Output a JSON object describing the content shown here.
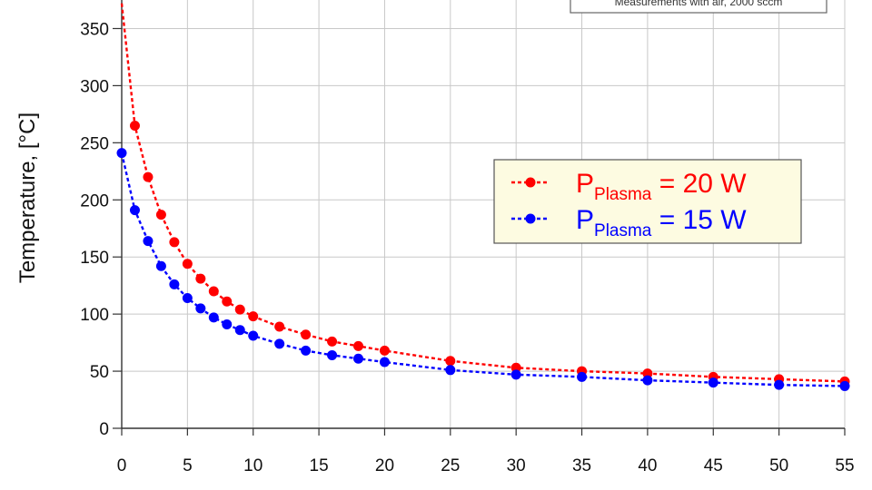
{
  "chart_data": {
    "type": "line",
    "title": "",
    "xlabel": "",
    "ylabel": "Temperature, [°C]",
    "xlim": [
      0,
      55
    ],
    "ylim": [
      0,
      375
    ],
    "xticks": [
      0,
      5,
      10,
      15,
      20,
      25,
      30,
      35,
      40,
      45,
      50,
      55
    ],
    "yticks": [
      0,
      50,
      100,
      150,
      200,
      250,
      300,
      350
    ],
    "grid": true,
    "legend_position": "center-right",
    "annotation": "Measurements with air, 2000 sccm",
    "series": [
      {
        "name": "P_Plasma = 20 W",
        "legend_main": "P",
        "legend_sub": "Plasma",
        "legend_rest": " = 20 W",
        "color": "#ff0000",
        "x": [
          0,
          1,
          2,
          3,
          4,
          5,
          6,
          7,
          8,
          9,
          10,
          12,
          14,
          16,
          18,
          20,
          25,
          30,
          35,
          40,
          45,
          50,
          55
        ],
        "y": [
          372,
          265,
          220,
          187,
          163,
          144,
          131,
          120,
          111,
          104,
          98,
          89,
          82,
          76,
          72,
          68,
          59,
          53,
          50,
          48,
          45,
          43,
          41
        ]
      },
      {
        "name": "P_Plasma = 15 W",
        "legend_main": "P",
        "legend_sub": "Plasma",
        "legend_rest": " = 15 W",
        "color": "#0000ff",
        "x": [
          0,
          1,
          2,
          3,
          4,
          5,
          6,
          7,
          8,
          9,
          10,
          12,
          14,
          16,
          18,
          20,
          25,
          30,
          35,
          40,
          45,
          50,
          55
        ],
        "y": [
          241,
          191,
          164,
          142,
          126,
          114,
          105,
          97,
          91,
          86,
          81,
          74,
          68,
          64,
          61,
          58,
          51,
          47,
          45,
          42,
          40,
          38,
          37
        ]
      }
    ]
  }
}
